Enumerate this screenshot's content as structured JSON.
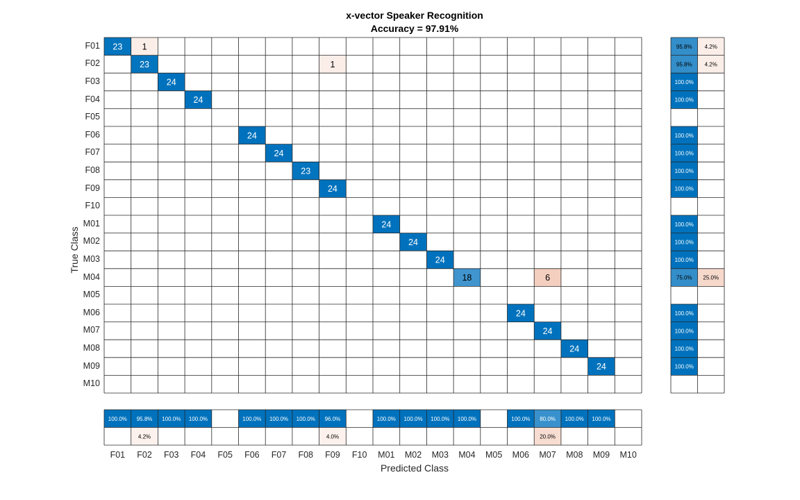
{
  "chart_data": {
    "type": "heatmap",
    "title": "x-vector Speaker Recognition",
    "subtitle": "Accuracy = 97.91%",
    "xlabel": "Predicted Class",
    "ylabel": "True Class",
    "classes": [
      "F01",
      "F02",
      "F03",
      "F04",
      "F05",
      "F06",
      "F07",
      "F08",
      "F09",
      "F10",
      "M01",
      "M02",
      "M03",
      "M04",
      "M05",
      "M06",
      "M07",
      "M08",
      "M09",
      "M10"
    ],
    "cells": [
      {
        "row": "F01",
        "col": "F01",
        "value": 23
      },
      {
        "row": "F01",
        "col": "F02",
        "value": 1
      },
      {
        "row": "F02",
        "col": "F02",
        "value": 23
      },
      {
        "row": "F02",
        "col": "F09",
        "value": 1
      },
      {
        "row": "F03",
        "col": "F03",
        "value": 24
      },
      {
        "row": "F04",
        "col": "F04",
        "value": 24
      },
      {
        "row": "F06",
        "col": "F06",
        "value": 24
      },
      {
        "row": "F07",
        "col": "F07",
        "value": 24
      },
      {
        "row": "F08",
        "col": "F08",
        "value": 23
      },
      {
        "row": "F09",
        "col": "F09",
        "value": 24
      },
      {
        "row": "M01",
        "col": "M01",
        "value": 24
      },
      {
        "row": "M02",
        "col": "M02",
        "value": 24
      },
      {
        "row": "M03",
        "col": "M03",
        "value": 24
      },
      {
        "row": "M04",
        "col": "M04",
        "value": 18
      },
      {
        "row": "M04",
        "col": "M07",
        "value": 6
      },
      {
        "row": "M06",
        "col": "M06",
        "value": 24
      },
      {
        "row": "M07",
        "col": "M07",
        "value": 24
      },
      {
        "row": "M08",
        "col": "M08",
        "value": 24
      },
      {
        "row": "M09",
        "col": "M09",
        "value": 24
      }
    ],
    "row_summary": [
      {
        "row": "F01",
        "correct": "95.8%",
        "incorrect": "4.2%"
      },
      {
        "row": "F02",
        "correct": "95.8%",
        "incorrect": "4.2%"
      },
      {
        "row": "F03",
        "correct": "100.0%",
        "incorrect": ""
      },
      {
        "row": "F04",
        "correct": "100.0%",
        "incorrect": ""
      },
      {
        "row": "F05",
        "correct": "",
        "incorrect": ""
      },
      {
        "row": "F06",
        "correct": "100.0%",
        "incorrect": ""
      },
      {
        "row": "F07",
        "correct": "100.0%",
        "incorrect": ""
      },
      {
        "row": "F08",
        "correct": "100.0%",
        "incorrect": ""
      },
      {
        "row": "F09",
        "correct": "100.0%",
        "incorrect": ""
      },
      {
        "row": "F10",
        "correct": "",
        "incorrect": ""
      },
      {
        "row": "M01",
        "correct": "100.0%",
        "incorrect": ""
      },
      {
        "row": "M02",
        "correct": "100.0%",
        "incorrect": ""
      },
      {
        "row": "M03",
        "correct": "100.0%",
        "incorrect": ""
      },
      {
        "row": "M04",
        "correct": "75.0%",
        "incorrect": "25.0%"
      },
      {
        "row": "M05",
        "correct": "",
        "incorrect": ""
      },
      {
        "row": "M06",
        "correct": "100.0%",
        "incorrect": ""
      },
      {
        "row": "M07",
        "correct": "100.0%",
        "incorrect": ""
      },
      {
        "row": "M08",
        "correct": "100.0%",
        "incorrect": ""
      },
      {
        "row": "M09",
        "correct": "100.0%",
        "incorrect": ""
      },
      {
        "row": "M10",
        "correct": "",
        "incorrect": ""
      }
    ],
    "column_summary": [
      {
        "col": "F01",
        "correct": "100.0%",
        "incorrect": ""
      },
      {
        "col": "F02",
        "correct": "95.8%",
        "incorrect": "4.2%"
      },
      {
        "col": "F03",
        "correct": "100.0%",
        "incorrect": ""
      },
      {
        "col": "F04",
        "correct": "100.0%",
        "incorrect": ""
      },
      {
        "col": "F05",
        "correct": "",
        "incorrect": ""
      },
      {
        "col": "F06",
        "correct": "100.0%",
        "incorrect": ""
      },
      {
        "col": "F07",
        "correct": "100.0%",
        "incorrect": ""
      },
      {
        "col": "F08",
        "correct": "100.0%",
        "incorrect": ""
      },
      {
        "col": "F09",
        "correct": "96.0%",
        "incorrect": "4.0%"
      },
      {
        "col": "F10",
        "correct": "",
        "incorrect": ""
      },
      {
        "col": "M01",
        "correct": "100.0%",
        "incorrect": ""
      },
      {
        "col": "M02",
        "correct": "100.0%",
        "incorrect": ""
      },
      {
        "col": "M03",
        "correct": "100.0%",
        "incorrect": ""
      },
      {
        "col": "M04",
        "correct": "100.0%",
        "incorrect": ""
      },
      {
        "col": "M05",
        "correct": "",
        "incorrect": ""
      },
      {
        "col": "M06",
        "correct": "100.0%",
        "incorrect": ""
      },
      {
        "col": "M07",
        "correct": "80.0%",
        "incorrect": "20.0%"
      },
      {
        "col": "M08",
        "correct": "100.0%",
        "incorrect": ""
      },
      {
        "col": "M09",
        "correct": "100.0%",
        "incorrect": ""
      },
      {
        "col": "M10",
        "correct": "",
        "incorrect": ""
      }
    ],
    "colors": {
      "correct": "#0072bd",
      "incorrect": "#d95319",
      "grid": "#262626"
    }
  }
}
